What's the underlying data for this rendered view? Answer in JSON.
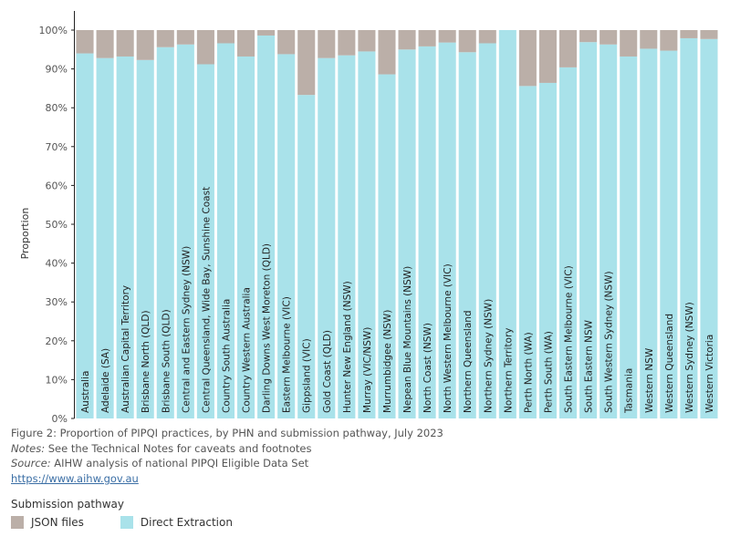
{
  "chart_data": {
    "type": "bar",
    "stacked": true,
    "orientation": "vertical",
    "ylabel": "Proportion",
    "ylim": [
      0,
      100
    ],
    "y_ticks": [
      "0%",
      "10%",
      "20%",
      "30%",
      "40%",
      "50%",
      "60%",
      "70%",
      "80%",
      "90%",
      "100%"
    ],
    "grid": false,
    "category_labels_inside_bars": true,
    "categories": [
      "Australia",
      "Adelaide (SA)",
      "Australian Capital Territory",
      "Brisbane North (QLD)",
      "Brisbane South (QLD)",
      "Central and Eastern Sydney (NSW)",
      "Central Queensland, Wide Bay, Sunshine Coast",
      "Country South Australia",
      "Country Western Australia",
      "Darling Downs West Moreton (QLD)",
      "Eastern Melbourne (VIC)",
      "Gippsland (VIC)",
      "Gold Coast (QLD)",
      "Hunter New England (NSW)",
      "Murray (VIC/NSW)",
      "Murrumbidgee (NSW)",
      "Nepean Blue Mountains (NSW)",
      "North Coast (NSW)",
      "North Western Melbourne (VIC)",
      "Northern Queensland",
      "Northern Sydney (NSW)",
      "Northern Territory",
      "Perth North (WA)",
      "Perth South (WA)",
      "South Eastern Melbourne (VIC)",
      "South Eastern NSW",
      "South Western Sydney (NSW)",
      "Tasmania",
      "Western NSW",
      "Western Queensland",
      "Western Sydney (NSW)",
      "Western Victoria"
    ],
    "series": [
      {
        "name": "Direct Extraction",
        "color": "#a9e2ea",
        "values": [
          94.0,
          92.8,
          93.2,
          92.3,
          95.6,
          96.3,
          91.2,
          96.6,
          93.2,
          98.6,
          93.8,
          83.3,
          92.8,
          93.5,
          94.5,
          88.6,
          95.0,
          95.8,
          96.8,
          94.3,
          96.6,
          100.0,
          85.6,
          86.4,
          90.4,
          96.9,
          96.3,
          93.2,
          95.2,
          94.7,
          97.9,
          97.7
        ]
      },
      {
        "name": "JSON files",
        "color": "#bbafa8",
        "values": [
          6.0,
          7.2,
          6.8,
          7.7,
          4.4,
          3.7,
          8.8,
          3.4,
          6.8,
          1.4,
          6.2,
          16.7,
          7.2,
          6.5,
          5.5,
          11.4,
          5.0,
          4.2,
          3.2,
          5.7,
          3.4,
          0.0,
          14.4,
          13.6,
          9.6,
          3.1,
          3.7,
          6.8,
          4.8,
          5.3,
          2.1,
          2.3
        ]
      }
    ]
  },
  "caption": {
    "figure": "Figure 2: Proportion of PIPQI practices, by PHN and submission pathway, July 2023",
    "notes_label": "Notes:",
    "notes_text": " See the Technical Notes for caveats and footnotes",
    "source_label": "Source:",
    "source_text": " AIHW analysis of national PIPQI Eligible Data Set",
    "link": "https://www.aihw.gov.au"
  },
  "legend": {
    "title": "Submission pathway",
    "items": [
      {
        "label": "JSON files",
        "color": "#bbafa8"
      },
      {
        "label": "Direct Extraction",
        "color": "#a9e2ea"
      }
    ]
  }
}
